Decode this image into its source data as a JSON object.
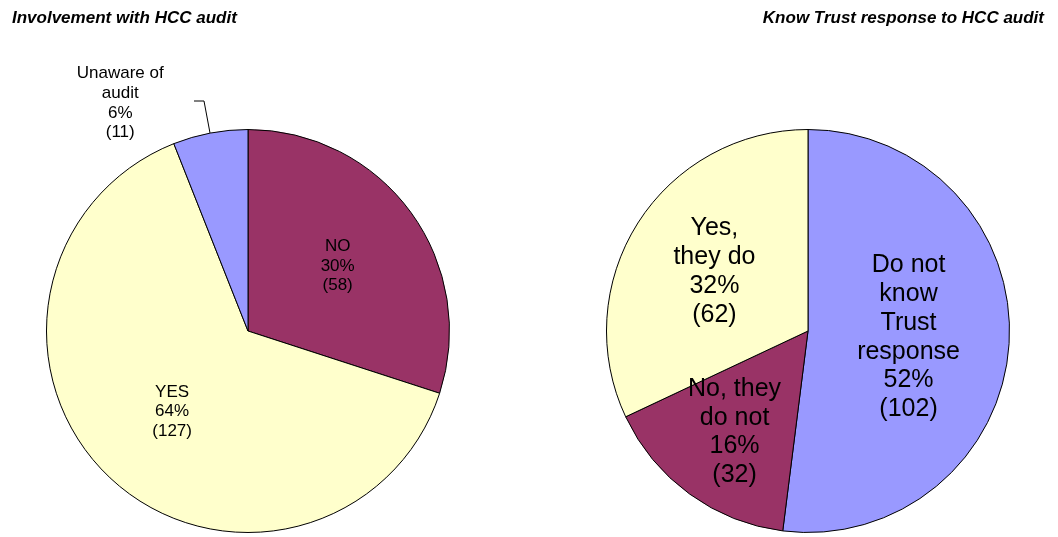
{
  "chart_data": [
    {
      "type": "pie",
      "title": "Involvement with HCC audit",
      "categories": [
        "NO",
        "YES",
        "Unaware of audit"
      ],
      "values": [
        30,
        64,
        6
      ],
      "value_labels": [
        "30% (58)",
        "64% (127)",
        "6% (11)"
      ],
      "colors": [
        "#993366",
        "#ffffcc",
        "#9999ff"
      ],
      "legend": false
    },
    {
      "type": "pie",
      "title": "Know Trust response to HCC audit",
      "categories": [
        "Do not know Trust response",
        "No, they do not",
        "Yes, they do"
      ],
      "values": [
        52,
        16,
        32
      ],
      "value_labels": [
        "52% (102)",
        "16% (32)",
        "32% (62)"
      ],
      "colors": [
        "#9999ff",
        "#993366",
        "#ffffcc"
      ],
      "legend": false
    }
  ]
}
